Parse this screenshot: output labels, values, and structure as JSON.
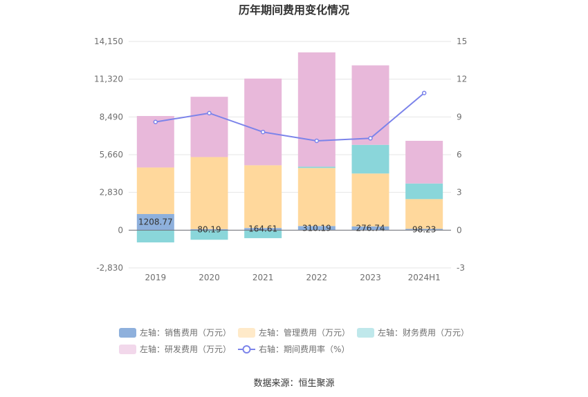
{
  "chart_data": {
    "type": "bar",
    "title": "历年期间费用变化情况",
    "categories": [
      "2019",
      "2020",
      "2021",
      "2022",
      "2023",
      "2024H1"
    ],
    "y_left": {
      "ticks": [
        -2830,
        0,
        2830,
        5660,
        8490,
        11320,
        14150
      ],
      "tick_labels": [
        "-2,830",
        "0",
        "2,830",
        "5,660",
        "8,490",
        "11,320",
        "14,150"
      ],
      "min": -2830,
      "max": 14150
    },
    "y_right": {
      "ticks": [
        -3,
        0,
        3,
        6,
        9,
        12,
        15
      ],
      "tick_labels": [
        "-3",
        "0",
        "3",
        "6",
        "9",
        "12",
        "15"
      ],
      "min": -3,
      "max": 15
    },
    "series": [
      {
        "name": "左轴：销售费用（万元）",
        "color": "#8eb0dc",
        "axis": "left",
        "kind": "bar",
        "values": [
          1208.77,
          80.19,
          164.61,
          310.19,
          276.74,
          98.23
        ],
        "labels": [
          "1208.77",
          "80.19",
          "164.61",
          "310.19",
          "276.74",
          "98.23"
        ]
      },
      {
        "name": "左轴：管理费用（万元）",
        "color": "#ffd89c",
        "axis": "left",
        "kind": "bar",
        "values": [
          3490,
          5400,
          4700,
          4350,
          3970,
          2230
        ]
      },
      {
        "name": "左轴：财务费用（万元）",
        "color": "#8ad6da",
        "axis": "left",
        "kind": "bar",
        "values": [
          -920,
          -720,
          -600,
          100,
          2150,
          1170
        ]
      },
      {
        "name": "左轴：研发费用（万元）",
        "color": "#e8b8da",
        "axis": "left",
        "kind": "bar",
        "values": [
          3860,
          4520,
          6500,
          8570,
          5960,
          3200
        ]
      },
      {
        "name": "右轴：期间费用率（%）",
        "color": "#7b83ea",
        "axis": "right",
        "kind": "line",
        "values": [
          8.6,
          9.3,
          7.8,
          7.1,
          7.3,
          10.9
        ]
      }
    ],
    "legend_position": "bottom",
    "grid": true
  },
  "source": "数据来源：恒生聚源"
}
